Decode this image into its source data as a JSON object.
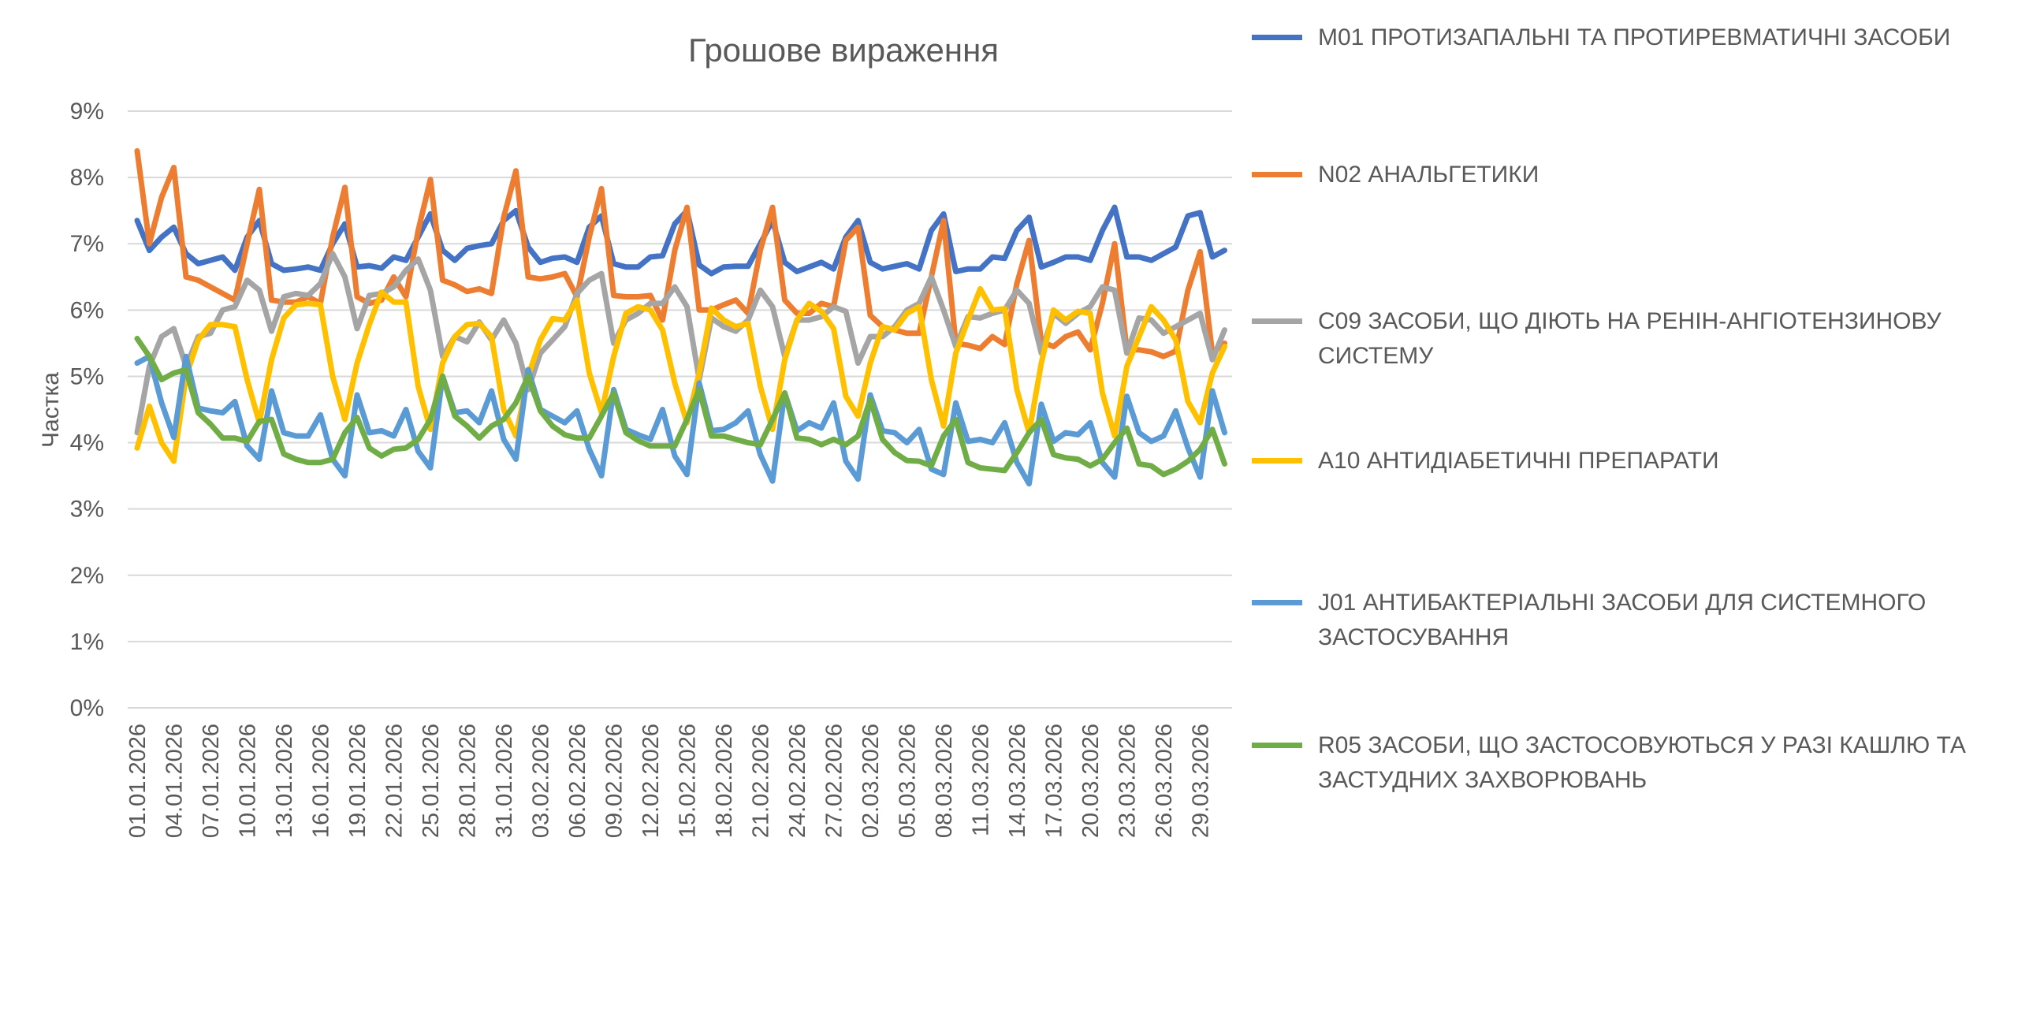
{
  "chart_data": {
    "type": "line",
    "title": "Грошове вираження",
    "ylabel": "Частка",
    "xlabel": "",
    "ylim": [
      0,
      9
    ],
    "y_ticks": [
      "0%",
      "1%",
      "2%",
      "3%",
      "4%",
      "5%",
      "6%",
      "7%",
      "8%",
      "9%"
    ],
    "grid": true,
    "legend_placement": "right",
    "x_tick_step_days": 3,
    "x_tick_labels": [
      "01.01.2026",
      "04.01.2026",
      "07.01.2026",
      "10.01.2026",
      "13.01.2026",
      "16.01.2026",
      "19.01.2026",
      "22.01.2026",
      "25.01.2026",
      "28.01.2026",
      "31.01.2026",
      "03.02.2026",
      "06.02.2026",
      "09.02.2026",
      "12.02.2026",
      "15.02.2026",
      "18.02.2026",
      "21.02.2026",
      "24.02.2026",
      "27.02.2026",
      "02.03.2026",
      "05.03.2026",
      "08.03.2026",
      "11.03.2026",
      "14.03.2026",
      "17.03.2026",
      "20.03.2026",
      "23.03.2026",
      "26.03.2026",
      "29.03.2026"
    ],
    "series": [
      {
        "name": "M01 ПРОТИЗАПАЛЬНІ ТА ПРОТИРЕВМАТИЧНІ ЗАСОБИ",
        "color": "#4472C4",
        "values": [
          7.35,
          6.9,
          7.1,
          7.25,
          6.85,
          6.7,
          6.75,
          6.8,
          6.6,
          7.1,
          7.35,
          6.7,
          6.6,
          6.62,
          6.65,
          6.6,
          7.0,
          7.3,
          6.65,
          6.67,
          6.63,
          6.8,
          6.75,
          7.1,
          7.45,
          6.9,
          6.75,
          6.93,
          6.97,
          7.0,
          7.35,
          7.5,
          6.95,
          6.72,
          6.78,
          6.8,
          6.72,
          7.25,
          7.42,
          6.7,
          6.65,
          6.65,
          6.8,
          6.82,
          7.3,
          7.5,
          6.68,
          6.55,
          6.65,
          6.66,
          6.66,
          7.0,
          7.35,
          6.72,
          6.58,
          6.65,
          6.72,
          6.62,
          7.1,
          7.35,
          6.72,
          6.62,
          6.66,
          6.7,
          6.62,
          7.2,
          7.45,
          6.58,
          6.62,
          6.62,
          6.8,
          6.78,
          7.2,
          7.4,
          6.65,
          6.72,
          6.8,
          6.8,
          6.75,
          7.2,
          7.55,
          6.8,
          6.8,
          6.75,
          6.85,
          6.95,
          7.42,
          7.47,
          6.8,
          6.9
        ]
      },
      {
        "name": "N02 АНАЛЬГЕТИКИ",
        "color": "#ED7D31",
        "values": [
          8.4,
          7.0,
          7.7,
          8.15,
          6.5,
          6.45,
          6.35,
          6.25,
          6.15,
          7.0,
          7.82,
          6.15,
          6.12,
          6.12,
          6.2,
          6.1,
          7.1,
          7.85,
          6.2,
          6.1,
          6.15,
          6.5,
          6.2,
          7.2,
          7.97,
          6.45,
          6.38,
          6.28,
          6.32,
          6.25,
          7.4,
          8.1,
          6.5,
          6.47,
          6.5,
          6.55,
          6.2,
          7.1,
          7.83,
          6.22,
          6.2,
          6.2,
          6.22,
          5.85,
          6.9,
          7.55,
          6.0,
          6.0,
          6.08,
          6.15,
          5.95,
          6.9,
          7.55,
          6.15,
          5.95,
          5.95,
          6.1,
          6.05,
          7.05,
          7.25,
          5.92,
          5.75,
          5.7,
          5.65,
          5.65,
          6.5,
          7.35,
          5.5,
          5.47,
          5.42,
          5.6,
          5.48,
          6.4,
          7.05,
          5.52,
          5.45,
          5.6,
          5.67,
          5.4,
          6.1,
          7.0,
          5.4,
          5.4,
          5.37,
          5.3,
          5.38,
          6.3,
          6.88,
          5.35,
          5.5
        ]
      },
      {
        "name": "C09 ЗАСОБИ, ЩО ДІЮТЬ НА РЕНІН-АНГІОТЕНЗИНОВУ СИСТЕМУ",
        "color": "#A5A5A5",
        "values": [
          4.15,
          5.15,
          5.6,
          5.72,
          5.15,
          5.6,
          5.65,
          6.0,
          6.05,
          6.45,
          6.3,
          5.68,
          6.2,
          6.25,
          6.22,
          6.4,
          6.85,
          6.5,
          5.72,
          6.22,
          6.25,
          6.35,
          6.6,
          6.77,
          6.3,
          5.3,
          5.6,
          5.52,
          5.82,
          5.55,
          5.85,
          5.5,
          4.8,
          5.35,
          5.55,
          5.75,
          6.25,
          6.45,
          6.55,
          5.5,
          5.85,
          5.95,
          6.1,
          6.1,
          6.35,
          6.05,
          4.95,
          5.88,
          5.75,
          5.68,
          5.85,
          6.3,
          6.05,
          5.3,
          5.85,
          5.85,
          5.9,
          6.05,
          5.98,
          5.2,
          5.6,
          5.6,
          5.75,
          6.0,
          6.1,
          6.5,
          6.0,
          5.45,
          5.9,
          5.88,
          5.95,
          6.0,
          6.3,
          6.1,
          5.35,
          5.95,
          5.8,
          5.95,
          6.05,
          6.35,
          6.3,
          5.35,
          5.88,
          5.85,
          5.65,
          5.75,
          5.85,
          5.95,
          5.25,
          5.7
        ]
      },
      {
        "name": "A10 АНТИДІАБЕТИЧНІ ПРЕПАРАТИ",
        "color": "#FFC000",
        "values": [
          3.92,
          4.55,
          4.0,
          3.72,
          5.0,
          5.55,
          5.78,
          5.78,
          5.75,
          4.95,
          4.3,
          5.25,
          5.88,
          6.08,
          6.1,
          6.08,
          5.0,
          4.35,
          5.2,
          5.78,
          6.27,
          6.12,
          6.12,
          4.85,
          4.2,
          5.2,
          5.6,
          5.78,
          5.8,
          5.6,
          4.5,
          4.1,
          5.0,
          5.55,
          5.87,
          5.85,
          6.15,
          5.05,
          4.45,
          5.3,
          5.95,
          6.05,
          6.0,
          5.7,
          4.9,
          4.3,
          5.05,
          6.03,
          5.85,
          5.75,
          5.8,
          4.85,
          4.2,
          5.25,
          5.85,
          6.1,
          5.98,
          5.72,
          4.7,
          4.4,
          5.2,
          5.75,
          5.7,
          5.95,
          6.05,
          4.95,
          4.25,
          5.35,
          5.85,
          6.32,
          6.0,
          6.02,
          4.8,
          4.15,
          5.2,
          6.0,
          5.85,
          5.98,
          5.95,
          4.75,
          4.1,
          5.15,
          5.6,
          6.05,
          5.85,
          5.55,
          4.62,
          4.3,
          5.05,
          5.45
        ]
      },
      {
        "name": "J01 АНТИБАКТЕРІАЛЬНІ ЗАСОБИ ДЛЯ СИСТЕМНОГО ЗАСТОСУВАННЯ",
        "color": "#5B9BD5",
        "values": [
          5.2,
          5.3,
          4.6,
          4.08,
          5.3,
          4.52,
          4.48,
          4.45,
          4.62,
          3.95,
          3.75,
          4.78,
          4.15,
          4.1,
          4.1,
          4.42,
          3.75,
          3.5,
          4.72,
          4.15,
          4.18,
          4.1,
          4.5,
          3.87,
          3.62,
          5.0,
          4.45,
          4.48,
          4.3,
          4.78,
          4.05,
          3.75,
          5.1,
          4.5,
          4.4,
          4.3,
          4.48,
          3.9,
          3.5,
          4.8,
          4.2,
          4.12,
          4.05,
          4.5,
          3.8,
          3.52,
          4.9,
          4.18,
          4.2,
          4.3,
          4.48,
          3.82,
          3.42,
          4.75,
          4.18,
          4.3,
          4.22,
          4.6,
          3.72,
          3.45,
          4.72,
          4.18,
          4.15,
          4.0,
          4.2,
          3.6,
          3.52,
          4.6,
          4.02,
          4.05,
          4.0,
          4.3,
          3.7,
          3.38,
          4.58,
          4.02,
          4.15,
          4.12,
          4.3,
          3.7,
          3.48,
          4.7,
          4.15,
          4.02,
          4.1,
          4.48,
          3.92,
          3.48,
          4.78,
          4.15
        ]
      },
      {
        "name": "R05 ЗАСОБИ, ЩО ЗАСТОСОВУЮТЬСЯ У РАЗІ КАШЛЮ ТА ЗАСТУДНИХ ЗАХВОРЮВАНЬ",
        "color": "#70AD47",
        "values": [
          5.57,
          5.3,
          4.95,
          5.05,
          5.1,
          4.45,
          4.28,
          4.07,
          4.07,
          4.02,
          4.32,
          4.35,
          3.83,
          3.75,
          3.7,
          3.7,
          3.75,
          4.15,
          4.38,
          3.92,
          3.8,
          3.9,
          3.92,
          4.05,
          4.35,
          5.0,
          4.4,
          4.25,
          4.07,
          4.25,
          4.35,
          4.6,
          5.0,
          4.48,
          4.25,
          4.12,
          4.07,
          4.07,
          4.4,
          4.75,
          4.15,
          4.03,
          3.95,
          3.95,
          3.95,
          4.35,
          4.8,
          4.1,
          4.1,
          4.05,
          4.0,
          3.97,
          4.35,
          4.75,
          4.07,
          4.05,
          3.97,
          4.05,
          3.97,
          4.1,
          4.65,
          4.05,
          3.85,
          3.73,
          3.72,
          3.65,
          4.1,
          4.35,
          3.7,
          3.62,
          3.6,
          3.58,
          3.85,
          4.15,
          4.35,
          3.82,
          3.77,
          3.75,
          3.65,
          3.75,
          4.0,
          4.22,
          3.68,
          3.65,
          3.52,
          3.6,
          3.72,
          3.9,
          4.2,
          3.68
        ]
      }
    ]
  }
}
